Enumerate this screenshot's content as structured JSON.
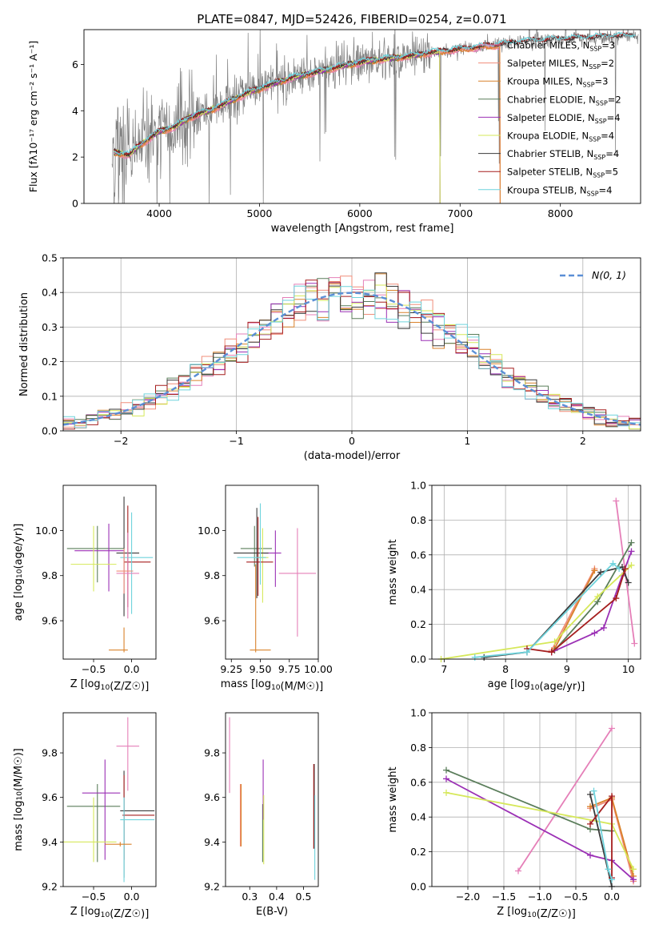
{
  "figure_title": "PLATE=0847, MJD=52426, FIBERID=0254, z=0.071",
  "colors": {
    "Chabrier MILES": "#e57fb8",
    "Salpeter MILES": "#f08d7a",
    "Kroupa MILES": "#d9822b",
    "Chabrier ELODIE": "#5a7d5a",
    "Salpeter ELODIE": "#9b30b5",
    "Kroupa ELODIE": "#d6e85a",
    "Chabrier STELIB": "#3a3a3a",
    "Salpeter STELIB": "#a51e1e",
    "Kroupa STELIB": "#6fd3dc",
    "data": "#808080",
    "gaussian": "#5b8fd6"
  },
  "chart_data": [
    {
      "id": "spectrum",
      "type": "line",
      "title": "PLATE=0847, MJD=52426, FIBERID=0254, z=0.071",
      "xlabel": "wavelength [Angstrom, rest frame]",
      "ylabel": "Flux [fλ10⁻¹⁷ erg cm⁻² s⁻¹ A⁻¹]",
      "xlim": [
        3250,
        8800
      ],
      "ylim": [
        0,
        7.5
      ],
      "xticks": [
        4000,
        5000,
        6000,
        7000,
        8000
      ],
      "yticks": [
        0,
        2,
        4,
        6
      ],
      "grid": false,
      "legend_loc": "right",
      "model_knots": {
        "x": [
          3550,
          3700,
          3800,
          3900,
          4000,
          4150,
          4300,
          4500,
          4700,
          4900,
          5100,
          5300,
          5500,
          5700,
          5900,
          6100,
          6300,
          6500,
          6700,
          6900,
          7100,
          7300,
          7500,
          7700,
          7900,
          8100,
          8300,
          8500,
          8780
        ],
        "y": [
          2.2,
          2.1,
          2.5,
          2.8,
          3.1,
          3.3,
          3.7,
          4.0,
          4.4,
          4.8,
          5.1,
          5.4,
          5.6,
          5.8,
          6.0,
          6.15,
          6.25,
          6.35,
          6.5,
          6.6,
          6.7,
          6.8,
          6.9,
          7.0,
          7.05,
          7.1,
          7.15,
          7.2,
          7.2
        ]
      },
      "series": [
        {
          "name": "Chabrier MILES, N$_{SSP}$=3",
          "color_key": "Chabrier MILES",
          "xmax": 7400
        },
        {
          "name": "Salpeter MILES, N$_{SSP}$=2",
          "color_key": "Salpeter MILES",
          "xmax": 7400
        },
        {
          "name": "Kroupa MILES, N$_{SSP}$=3",
          "color_key": "Kroupa MILES",
          "xmax": 7400
        },
        {
          "name": "Chabrier ELODIE, N$_{SSP}$=2",
          "color_key": "Chabrier ELODIE",
          "xmax": 6800
        },
        {
          "name": "Salpeter ELODIE, N$_{SSP}$=4",
          "color_key": "Salpeter ELODIE",
          "xmax": 6800
        },
        {
          "name": "Kroupa ELODIE, N$_{SSP}$=4",
          "color_key": "Kroupa ELODIE",
          "xmax": 6800
        },
        {
          "name": "Chabrier STELIB, N$_{SSP}$=4",
          "color_key": "Chabrier STELIB",
          "xmax": 8750
        },
        {
          "name": "Salpeter STELIB, N$_{SSP}$=5",
          "color_key": "Salpeter STELIB",
          "xmax": 8750
        },
        {
          "name": "Kroupa STELIB, N$_{SSP}$=4",
          "color_key": "Kroupa STELIB",
          "xmax": 8750
        }
      ]
    },
    {
      "id": "residuals",
      "type": "line",
      "xlabel": "(data-model)/error",
      "ylabel": "Normed distribution",
      "xlim": [
        -2.5,
        2.5
      ],
      "ylim": [
        0,
        0.5
      ],
      "xticks": [
        -2,
        -1,
        0,
        1,
        2
      ],
      "yticks": [
        0.0,
        0.1,
        0.2,
        0.3,
        0.4,
        0.5
      ],
      "grid": true,
      "legend_loc": "upper right",
      "gaussian_label": "N(0, 1)",
      "bin_width": 0.1,
      "hist_order": [
        "Chabrier MILES",
        "Salpeter MILES",
        "Kroupa MILES",
        "Chabrier ELODIE",
        "Salpeter ELODIE",
        "Kroupa ELODIE",
        "Chabrier STELIB",
        "Salpeter STELIB",
        "Kroupa STELIB"
      ]
    },
    {
      "id": "age-vs-z",
      "type": "scatter",
      "xlabel": "Z [log10(Z/Z☉)]",
      "ylabel": "age  [log10(age/yr)]",
      "xlim": [
        -0.9,
        0.32
      ],
      "ylim": [
        9.43,
        10.2
      ],
      "xticks": [
        -0.5,
        0.0
      ],
      "yticks": [
        9.6,
        9.8,
        10.0
      ],
      "grid": false,
      "points": [
        {
          "key": "Chabrier ELODIE",
          "x": -0.45,
          "xerr": [
            0.4,
            0.35
          ],
          "y": 9.92,
          "yerr": [
            0.15,
            0.1
          ]
        },
        {
          "key": "Salpeter ELODIE",
          "x": -0.3,
          "xerr": [
            0.45,
            0.2
          ],
          "y": 9.91,
          "yerr": [
            0.18,
            0.12
          ]
        },
        {
          "key": "Kroupa ELODIE",
          "x": -0.5,
          "xerr": [
            0.3,
            0.3
          ],
          "y": 9.85,
          "yerr": [
            0.12,
            0.17
          ]
        },
        {
          "key": "Chabrier STELIB",
          "x": -0.1,
          "xerr": [
            0.1,
            0.2
          ],
          "y": 9.9,
          "yerr": [
            0.28,
            0.25
          ]
        },
        {
          "key": "Salpeter STELIB",
          "x": -0.05,
          "xerr": [
            0.05,
            0.3
          ],
          "y": 9.86,
          "yerr": [
            0.2,
            0.25
          ]
        },
        {
          "key": "Kroupa STELIB",
          "x": 0.0,
          "xerr": [
            0.15,
            0.28
          ],
          "y": 9.88,
          "yerr": [
            0.25,
            0.2
          ]
        },
        {
          "key": "Chabrier MILES",
          "x": -0.05,
          "xerr": [
            0.15,
            0.15
          ],
          "y": 9.81,
          "yerr": [
            0.2,
            0.18
          ]
        },
        {
          "key": "Kroupa MILES",
          "x": -0.1,
          "xerr": [
            0.2,
            0.05
          ],
          "y": 9.47,
          "yerr": [
            0.01,
            0.1
          ]
        },
        {
          "key": "Salpeter MILES",
          "x": -0.1,
          "xerr": [
            0.1,
            0.12
          ],
          "y": 9.82,
          "yerr": [
            0.1,
            0.1
          ]
        }
      ]
    },
    {
      "id": "age-vs-mass",
      "type": "scatter",
      "xlabel": "mass [log10(M/M☉)]",
      "ylabel": "",
      "xlim": [
        9.2,
        10.0
      ],
      "ylim": [
        9.43,
        10.2
      ],
      "xticks": [
        9.25,
        9.5,
        9.75,
        10.0
      ],
      "yticks": [
        9.6,
        9.8,
        10.0
      ],
      "grid": false,
      "points": [
        {
          "key": "Chabrier ELODIE",
          "x": 9.45,
          "xerr": [
            0.12,
            0.15
          ],
          "y": 9.92,
          "yerr": [
            0.08,
            0.1
          ]
        },
        {
          "key": "Salpeter ELODIE",
          "x": 9.63,
          "xerr": [
            0.1,
            0.05
          ],
          "y": 9.9,
          "yerr": [
            0.15,
            0.1
          ]
        },
        {
          "key": "Kroupa ELODIE",
          "x": 9.52,
          "xerr": [
            0.05,
            0.05
          ],
          "y": 9.88,
          "yerr": [
            0.2,
            0.13
          ]
        },
        {
          "key": "Chabrier STELIB",
          "x": 9.47,
          "xerr": [
            0.2,
            0.1
          ],
          "y": 9.9,
          "yerr": [
            0.2,
            0.2
          ]
        },
        {
          "key": "Salpeter STELIB",
          "x": 9.48,
          "xerr": [
            0.1,
            0.13
          ],
          "y": 9.86,
          "yerr": [
            0.15,
            0.2
          ]
        },
        {
          "key": "Kroupa STELIB",
          "x": 9.5,
          "xerr": [
            0.2,
            0.05
          ],
          "y": 9.88,
          "yerr": [
            0.12,
            0.24
          ]
        },
        {
          "key": "Chabrier MILES",
          "x": 9.82,
          "xerr": [
            0.16,
            0.16
          ],
          "y": 9.81,
          "yerr": [
            0.28,
            0.2
          ]
        },
        {
          "key": "Kroupa MILES",
          "x": 9.46,
          "xerr": [
            0.05,
            0.13
          ],
          "y": 9.47,
          "yerr": [
            0.01,
            0.38
          ]
        }
      ]
    },
    {
      "id": "massweight-vs-age",
      "type": "line",
      "xlabel": "age  [log10(age/yr)]",
      "ylabel": "mass weight",
      "xlim": [
        6.8,
        10.2
      ],
      "ylim": [
        0.0,
        1.0
      ],
      "xticks": [
        7,
        8,
        9,
        10
      ],
      "yticks": [
        0.0,
        0.2,
        0.4,
        0.6,
        0.8,
        1.0
      ],
      "grid": true,
      "series": [
        {
          "key": "Chabrier MILES",
          "x": [
            9.8,
            10.1
          ],
          "y": [
            0.91,
            0.09
          ]
        },
        {
          "key": "Salpeter MILES",
          "x": [
            8.75,
            9.45
          ],
          "y": [
            0.05,
            0.52
          ]
        },
        {
          "key": "Kroupa MILES",
          "x": [
            8.8,
            9.45
          ],
          "y": [
            0.06,
            0.51
          ]
        },
        {
          "key": "Chabrier ELODIE",
          "x": [
            8.8,
            9.5,
            10.05
          ],
          "y": [
            0.05,
            0.33,
            0.67
          ]
        },
        {
          "key": "Salpeter ELODIE",
          "x": [
            8.75,
            9.45,
            9.6,
            9.9,
            10.05
          ],
          "y": [
            0.04,
            0.15,
            0.18,
            0.48,
            0.62
          ]
        },
        {
          "key": "Kroupa ELODIE",
          "x": [
            6.95,
            8.8,
            9.5,
            10.05
          ],
          "y": [
            0.0,
            0.1,
            0.36,
            0.54
          ]
        },
        {
          "key": "Chabrier STELIB",
          "x": [
            7.65,
            8.35,
            9.55,
            9.9,
            10.0
          ],
          "y": [
            0.01,
            0.04,
            0.5,
            0.53,
            0.44
          ]
        },
        {
          "key": "Salpeter STELIB",
          "x": [
            8.35,
            8.75,
            9.8,
            9.95
          ],
          "y": [
            0.06,
            0.04,
            0.35,
            0.52
          ]
        },
        {
          "key": "Kroupa STELIB",
          "x": [
            7.5,
            8.35,
            9.75,
            9.85
          ],
          "y": [
            0.01,
            0.04,
            0.55,
            0.52
          ]
        }
      ]
    },
    {
      "id": "mass-vs-z",
      "type": "scatter",
      "xlabel": "Z [log10(Z/Z☉)]",
      "ylabel": "mass [log10(M/M☉)]",
      "xlim": [
        -0.9,
        0.32
      ],
      "ylim": [
        9.2,
        9.98
      ],
      "xticks": [
        -0.5,
        0.0
      ],
      "yticks": [
        9.2,
        9.4,
        9.6,
        9.8
      ],
      "grid": false,
      "points": [
        {
          "key": "Chabrier MILES",
          "x": -0.05,
          "xerr": [
            0.15,
            0.15
          ],
          "y": 9.83,
          "yerr": [
            0.2,
            0.13
          ]
        },
        {
          "key": "Chabrier ELODIE",
          "x": -0.45,
          "xerr": [
            0.4,
            0.3
          ],
          "y": 9.56,
          "yerr": [
            0.25,
            0.1
          ]
        },
        {
          "key": "Salpeter ELODIE",
          "x": -0.35,
          "xerr": [
            0.3,
            0.2
          ],
          "y": 9.62,
          "yerr": [
            0.3,
            0.15
          ]
        },
        {
          "key": "Kroupa ELODIE",
          "x": -0.5,
          "xerr": [
            0.4,
            0.3
          ],
          "y": 9.4,
          "yerr": [
            0.09,
            0.2
          ]
        },
        {
          "key": "Chabrier STELIB",
          "x": -0.1,
          "xerr": [
            0.05,
            0.4
          ],
          "y": 9.54,
          "yerr": [
            0.3,
            0.18
          ]
        },
        {
          "key": "Salpeter STELIB",
          "x": -0.1,
          "xerr": [
            0.02,
            0.4
          ],
          "y": 9.52,
          "yerr": [
            0.2,
            0.18
          ]
        },
        {
          "key": "Kroupa STELIB",
          "x": -0.1,
          "xerr": [
            0.05,
            0.4
          ],
          "y": 9.5,
          "yerr": [
            0.28,
            0.1
          ]
        },
        {
          "key": "Kroupa MILES",
          "x": -0.15,
          "xerr": [
            0.2,
            0.15
          ],
          "y": 9.39,
          "yerr": [
            0.01,
            0.01
          ]
        }
      ]
    },
    {
      "id": "mass-vs-ebv",
      "type": "scatter",
      "xlabel": "E(B-V)",
      "ylabel": "",
      "xlim": [
        0.21,
        0.555
      ],
      "ylim": [
        9.2,
        9.98
      ],
      "xticks": [
        0.3,
        0.4,
        0.5
      ],
      "yticks": [
        9.2,
        9.4,
        9.6,
        9.8
      ],
      "grid": false,
      "points": [
        {
          "key": "Chabrier MILES",
          "x": 0.225,
          "y": 9.79,
          "yerr": [
            0.17,
            0.17
          ]
        },
        {
          "key": "Salpeter MILES",
          "x": 0.265,
          "y": 9.52,
          "yerr": [
            0.14,
            0.14
          ]
        },
        {
          "key": "Kroupa MILES",
          "x": 0.268,
          "y": 9.52,
          "yerr": [
            0.14,
            0.14
          ]
        },
        {
          "key": "Chabrier ELODIE",
          "x": 0.348,
          "y": 9.43,
          "yerr": [
            0.12,
            0.14
          ]
        },
        {
          "key": "Salpeter ELODIE",
          "x": 0.35,
          "y": 9.65,
          "yerr": [
            0.15,
            0.12
          ]
        },
        {
          "key": "Kroupa ELODIE",
          "x": 0.352,
          "y": 9.45,
          "yerr": [
            0.15,
            0.16
          ]
        },
        {
          "key": "Chabrier STELIB",
          "x": 0.54,
          "y": 9.56,
          "yerr": [
            0.19,
            0.19
          ]
        },
        {
          "key": "Salpeter STELIB",
          "x": 0.538,
          "y": 9.56,
          "yerr": [
            0.19,
            0.19
          ]
        },
        {
          "key": "Kroupa STELIB",
          "x": 0.542,
          "y": 9.42,
          "yerr": [
            0.19,
            0.19
          ]
        }
      ]
    },
    {
      "id": "massweight-vs-z",
      "type": "line",
      "xlabel": "Z [log10(Z/Z☉)]",
      "ylabel": "mass weight",
      "xlim": [
        -2.5,
        0.4
      ],
      "ylim": [
        0.0,
        1.0
      ],
      "xticks": [
        -2.0,
        -1.5,
        -1.0,
        -0.5,
        0.0
      ],
      "yticks": [
        0.0,
        0.2,
        0.4,
        0.6,
        0.8,
        1.0
      ],
      "grid": true,
      "series": [
        {
          "key": "Chabrier MILES",
          "x": [
            -1.3,
            0.0
          ],
          "y": [
            0.09,
            0.91
          ]
        },
        {
          "key": "Salpeter MILES",
          "x": [
            -0.3,
            0.0,
            0.3
          ],
          "y": [
            0.45,
            0.5,
            0.03
          ]
        },
        {
          "key": "Kroupa MILES",
          "x": [
            -0.3,
            0.0,
            0.3
          ],
          "y": [
            0.46,
            0.51,
            0.06
          ]
        },
        {
          "key": "Chabrier ELODIE",
          "x": [
            -2.3,
            -0.3,
            0.0
          ],
          "y": [
            0.67,
            0.33,
            0.32
          ]
        },
        {
          "key": "Salpeter ELODIE",
          "x": [
            -2.3,
            -0.3,
            0.0,
            0.3
          ],
          "y": [
            0.62,
            0.18,
            0.15,
            0.04
          ]
        },
        {
          "key": "Kroupa ELODIE",
          "x": [
            -2.3,
            0.0,
            0.3
          ],
          "y": [
            0.54,
            0.36,
            0.1
          ]
        },
        {
          "key": "Chabrier STELIB",
          "x": [
            -0.3,
            0.0
          ],
          "y": [
            0.53,
            0.0
          ]
        },
        {
          "key": "Salpeter STELIB",
          "x": [
            -0.3,
            0.0,
            0.0
          ],
          "y": [
            0.36,
            0.52,
            0.05
          ]
        },
        {
          "key": "Kroupa STELIB",
          "x": [
            -0.25,
            -0.05,
            0.0
          ],
          "y": [
            0.55,
            0.1,
            0.04
          ]
        }
      ]
    }
  ]
}
